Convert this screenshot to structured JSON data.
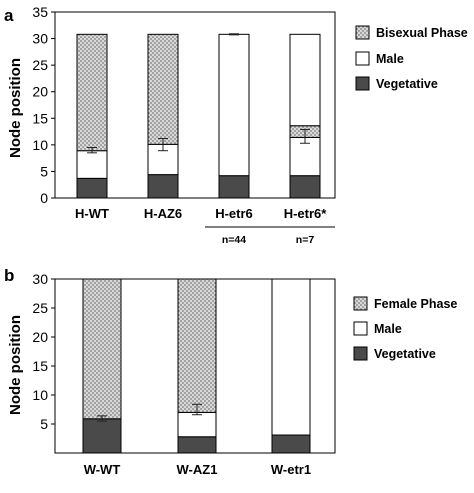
{
  "chart_data": [
    {
      "panel": "a",
      "type": "bar",
      "stacked": true,
      "ylabel": "Node position",
      "ylim": [
        0,
        35
      ],
      "yticks": [
        0,
        5,
        10,
        15,
        20,
        25,
        30,
        35
      ],
      "categories": [
        "H-WT",
        "H-AZ6",
        "H-etr6",
        "H-etr6*"
      ],
      "notes": [
        "",
        "",
        "n=44",
        "n=7"
      ],
      "series": [
        {
          "name": "Vegetative",
          "values": [
            3.7,
            4.4,
            4.2,
            4.2
          ],
          "color": "#4a4a4a",
          "pattern": "solid"
        },
        {
          "name": "Male",
          "values": [
            5.2,
            5.7,
            26.6,
            7.2
          ],
          "color": "#ffffff",
          "pattern": "solid"
        },
        {
          "name": "Bisexual Phase",
          "values": [
            21.9,
            20.7,
            0,
            2.2
          ],
          "color": "#c4c4c4",
          "pattern": "dots"
        }
      ],
      "extra_segment": {
        "category": "H-etr6*",
        "from": 13.6,
        "to": 30.8,
        "color": "#ffffff"
      },
      "error_bars": [
        {
          "category": "H-WT",
          "center": 8.9,
          "low": 8.5,
          "high": 9.5
        },
        {
          "category": "H-AZ6",
          "center": 10.1,
          "low": 8.9,
          "high": 11.2
        },
        {
          "category": "H-etr6",
          "center": 30.8,
          "low": 30.7,
          "high": 30.9
        },
        {
          "category": "H-etr6*",
          "center": 11.4,
          "low": 10.3,
          "high": 12.9
        }
      ],
      "legend": {
        "position": "right",
        "entries": [
          "Bisexual Phase",
          "Male",
          "Vegetative"
        ]
      },
      "grid": false
    },
    {
      "panel": "b",
      "type": "bar",
      "stacked": true,
      "ylabel": "Node position",
      "ylim": [
        0,
        30
      ],
      "yticks": [
        5,
        10,
        15,
        20,
        25,
        30
      ],
      "categories": [
        "W-WT",
        "W-AZ1",
        "W-etr1"
      ],
      "series": [
        {
          "name": "Vegetative",
          "values": [
            5.9,
            2.8,
            3.1
          ],
          "color": "#4a4a4a",
          "pattern": "solid"
        },
        {
          "name": "Male",
          "values": [
            0,
            4.2,
            26.9
          ],
          "color": "#ffffff",
          "pattern": "solid"
        },
        {
          "name": "Female Phase",
          "values": [
            24.1,
            23.0,
            0
          ],
          "color": "#c4c4c4",
          "pattern": "dots"
        }
      ],
      "error_bars": [
        {
          "category": "W-WT",
          "center": 5.9,
          "low": 5.5,
          "high": 6.4
        },
        {
          "category": "W-AZ1",
          "center": 7.0,
          "low": 6.6,
          "high": 8.4
        }
      ],
      "legend": {
        "position": "right",
        "entries": [
          "Female Phase",
          "Male",
          "Vegetative"
        ]
      },
      "grid": false
    }
  ]
}
